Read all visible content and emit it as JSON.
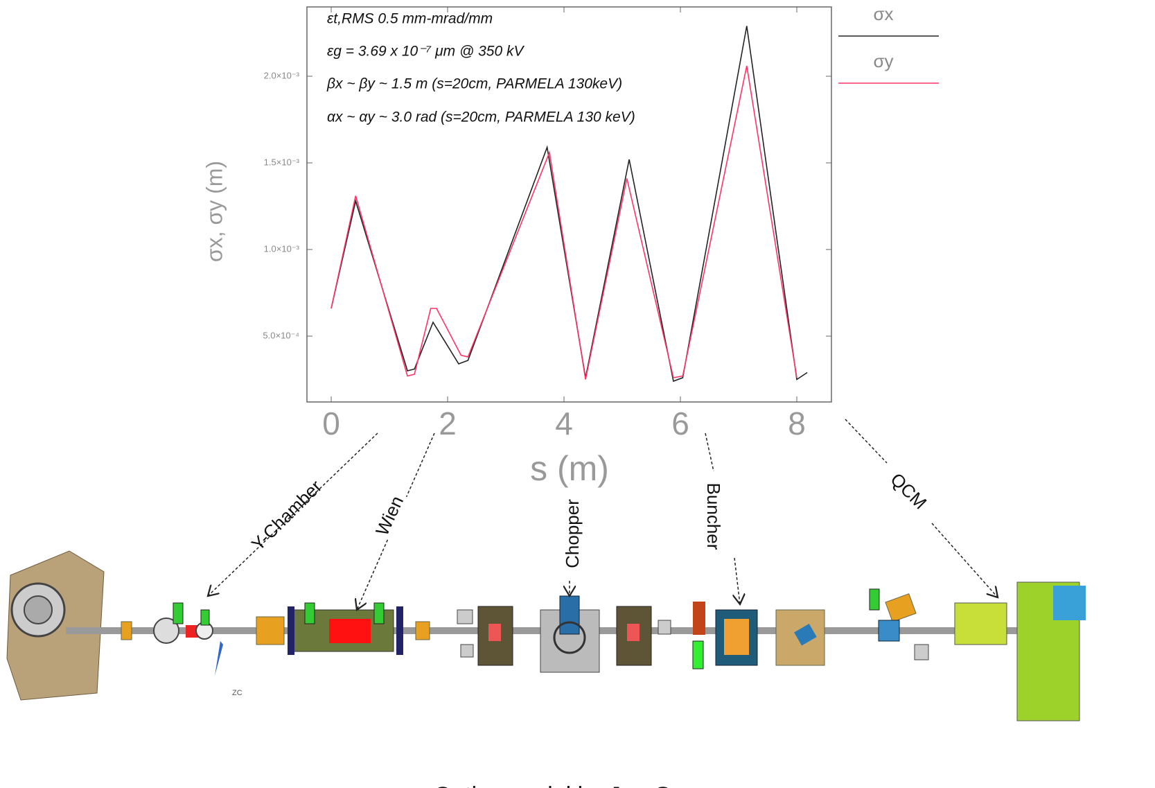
{
  "chart_data": {
    "type": "line",
    "y_label": "σx, σy (m)",
    "x_label": "s (m)",
    "annotations": [
      "εt,RMS  0.5 mm-mrad/mm",
      "εg = 3.69 x 10⁻⁷ μm @ 350 kV",
      "βx ~ βy ~ 1.5 m (s=20cm, PARMELA 130keV)",
      "αx ~ αy ~ 3.0 rad (s=20cm, PARMELA 130 keV)"
    ],
    "xlim": [
      -0.417,
      8.595
    ],
    "ylim": [
      0.00012,
      0.0024
    ],
    "xticks": [
      0,
      2,
      4,
      6,
      8
    ],
    "yticks": [
      {
        "value": 0.0005,
        "label": "5.0×10⁻⁴"
      },
      {
        "value": 0.001,
        "label": "1.0×10⁻³"
      },
      {
        "value": 0.0015,
        "label": "1.5×10⁻³"
      },
      {
        "value": 0.002,
        "label": "2.0×10⁻³"
      }
    ],
    "series": [
      {
        "name": "σx",
        "color": "#222222",
        "x": [
          0,
          0.42,
          1.31,
          1.43,
          1.75,
          2.19,
          2.35,
          3.71,
          4.37,
          5.12,
          5.88,
          6.04,
          7.14,
          8.0,
          8.18
        ],
        "values": [
          0.00066,
          0.00128,
          0.0003,
          0.00031,
          0.00058,
          0.00034,
          0.00036,
          0.00159,
          0.00026,
          0.00152,
          0.00024,
          0.00026,
          0.00229,
          0.00025,
          0.00029
        ]
      },
      {
        "name": "σy",
        "color": "#ff3366",
        "x": [
          0,
          0.42,
          1.31,
          1.43,
          1.71,
          1.81,
          2.23,
          2.35,
          3.75,
          4.37,
          5.08,
          5.88,
          6.04,
          7.14,
          8.0
        ],
        "values": [
          0.00066,
          0.00131,
          0.00027,
          0.00028,
          0.00066,
          0.00066,
          0.00039,
          0.00038,
          0.00156,
          0.00025,
          0.00141,
          0.00026,
          0.00027,
          0.00206,
          0.00026
        ]
      }
    ],
    "components": [
      "Y-Chamber",
      "Wien",
      "Chopper",
      "Buncher",
      "QCM"
    ],
    "zc_label": "ZC",
    "caption": "Optics model by Joe Grames"
  }
}
